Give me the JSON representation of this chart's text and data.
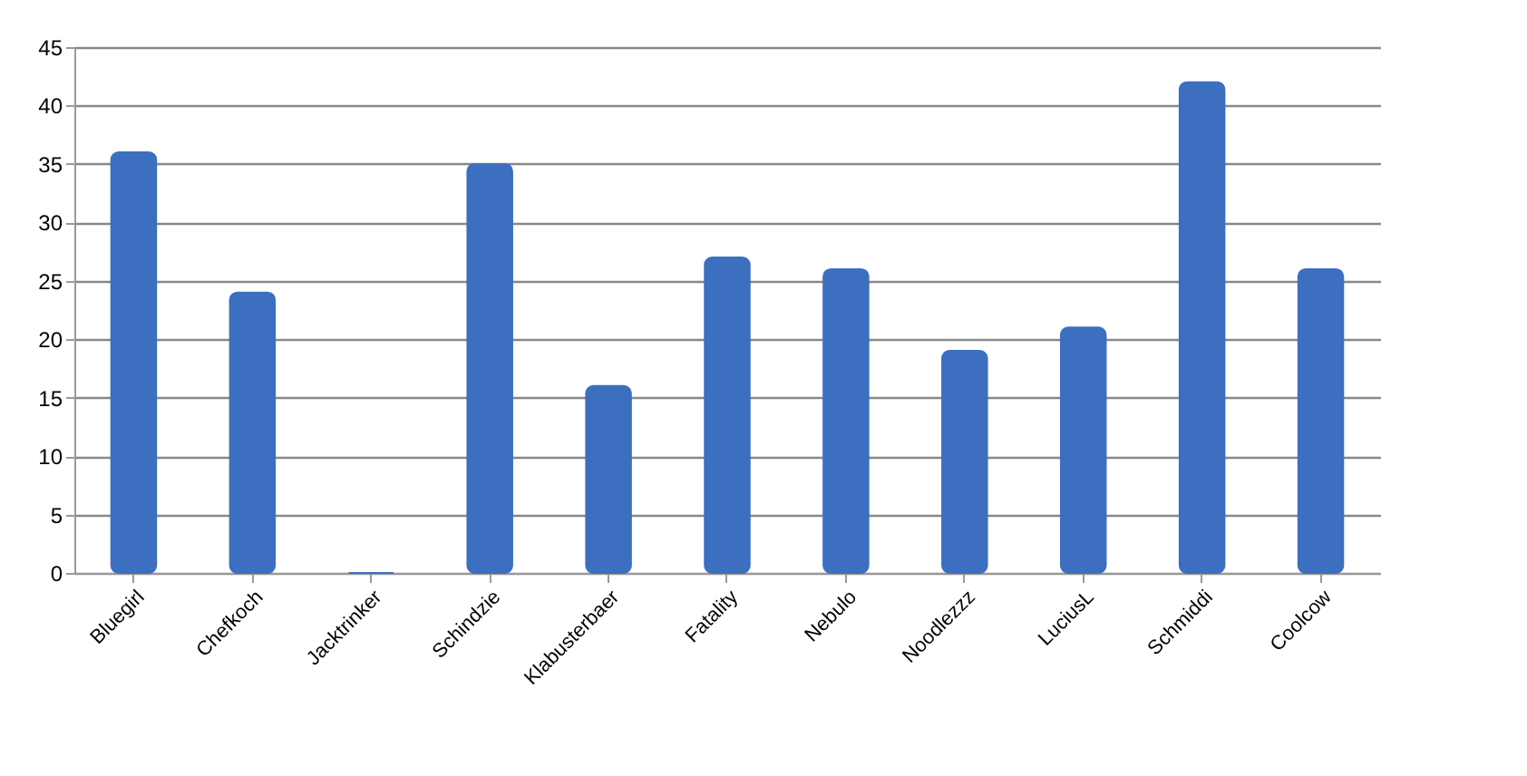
{
  "chart_data": {
    "type": "bar",
    "categories": [
      "Bluegirl",
      "Chefkoch",
      "Jacktrinker",
      "Schindzie",
      "Klabusterbaer",
      "Fatality",
      "Nebulo",
      "Noodlezzz",
      "LuciusL",
      "Schmiddi",
      "Coolcow"
    ],
    "values": [
      36,
      24,
      0,
      35,
      16,
      27,
      26,
      19,
      21,
      42,
      26
    ],
    "color": "#3c6fc0",
    "ylim": [
      0,
      45
    ],
    "yticks": [
      0,
      5,
      10,
      15,
      20,
      25,
      30,
      35,
      40,
      45
    ],
    "grid": "y"
  }
}
